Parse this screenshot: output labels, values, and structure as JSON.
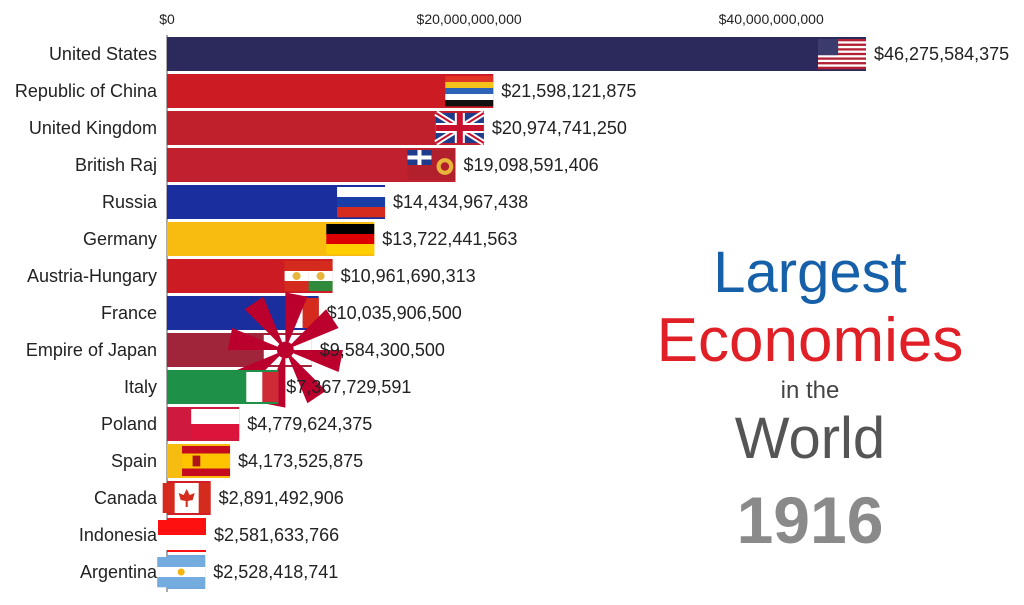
{
  "chart_data": {
    "type": "bar",
    "orientation": "horizontal",
    "title_lines": [
      "Largest",
      "Economies",
      "in the",
      "World"
    ],
    "year": "1916",
    "xticks": [
      "$0",
      "$20,000,000,000",
      "$40,000,000,000"
    ],
    "xtick_values": [
      0,
      20000000000,
      40000000000
    ],
    "xlim": [
      0,
      46275584375
    ],
    "categories": [
      "United States",
      "Republic of China",
      "United Kingdom",
      "British Raj",
      "Russia",
      "Germany",
      "Austria-Hungary",
      "France",
      "Empire of Japan",
      "Italy",
      "Poland",
      "Spain",
      "Canada",
      "Indonesia",
      "Argentina"
    ],
    "values": [
      46275584375,
      21598121875,
      20974741250,
      19098591406,
      14434967438,
      13722441563,
      10961690313,
      10035906500,
      9584300500,
      7367729591,
      4779624375,
      4173525875,
      2891492906,
      2581633766,
      2528418741
    ],
    "value_labels": [
      "$46,275,584,375",
      "$21,598,121,875",
      "$20,974,741,250",
      "$19,098,591,406",
      "$14,434,967,438",
      "$13,722,441,563",
      "$10,961,690,313",
      "$10,035,906,500",
      "$9,584,300,500",
      "$7,367,729,591",
      "$4,779,624,375",
      "$4,173,525,875",
      "$2,891,492,906",
      "$2,581,633,766",
      "$2,528,418,741"
    ],
    "colors": [
      "#2c2a5c",
      "#cc1b22",
      "#c0202c",
      "#c1202e",
      "#1a2e9e",
      "#f8bb10",
      "#cc1b22",
      "#1a2e9e",
      "#a0243a",
      "#1f9048",
      "#d0193f",
      "#f6bd10",
      "#d21f26",
      "#ff1010",
      "#6fa6dc"
    ],
    "flags": [
      "flag-usa",
      "flag-roc",
      "flag-uk",
      "flag-british-raj",
      "flag-russia",
      "flag-germany",
      "flag-austria-hungary",
      "flag-france",
      "flag-japan-rising-sun",
      "flag-italy",
      "flag-poland",
      "flag-spain",
      "flag-canada",
      "flag-indonesia",
      "flag-argentina"
    ],
    "legend": "none",
    "grid": false
  }
}
